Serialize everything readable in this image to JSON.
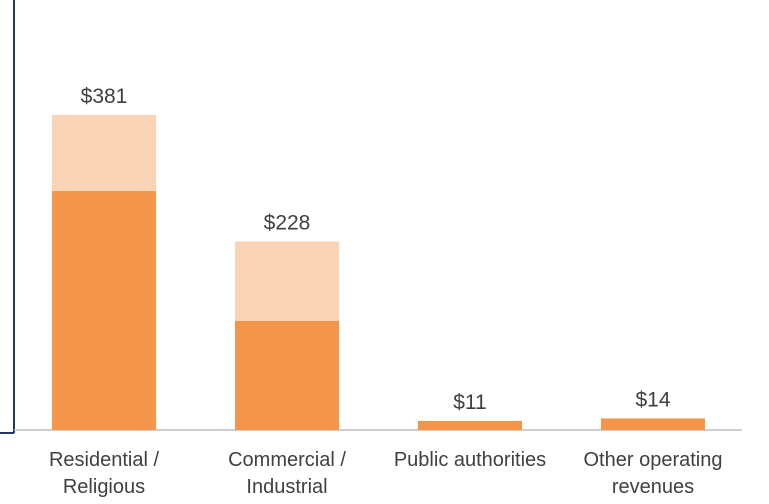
{
  "chart_data": {
    "type": "bar",
    "stacked": true,
    "categories": [
      [
        "Residential /",
        "Religious"
      ],
      [
        "Commercial /",
        "Industrial"
      ],
      [
        "Public authorities"
      ],
      [
        "Other operating",
        "revenues"
      ]
    ],
    "series": [
      {
        "values": [
          289,
          132,
          11,
          14
        ],
        "color": "#f5954a"
      },
      {
        "values": [
          92,
          96,
          0,
          0
        ],
        "color": "#fbd3b5"
      }
    ],
    "totals": [
      381,
      228,
      11,
      14
    ],
    "data_labels": [
      "$381",
      "$228",
      "$11",
      "$14"
    ],
    "ylim": [
      0,
      520
    ],
    "grid": false,
    "legend": "none",
    "axis_color": "#1f3864",
    "baseline_color": "#bfbfbf",
    "label_color": "#404040"
  }
}
